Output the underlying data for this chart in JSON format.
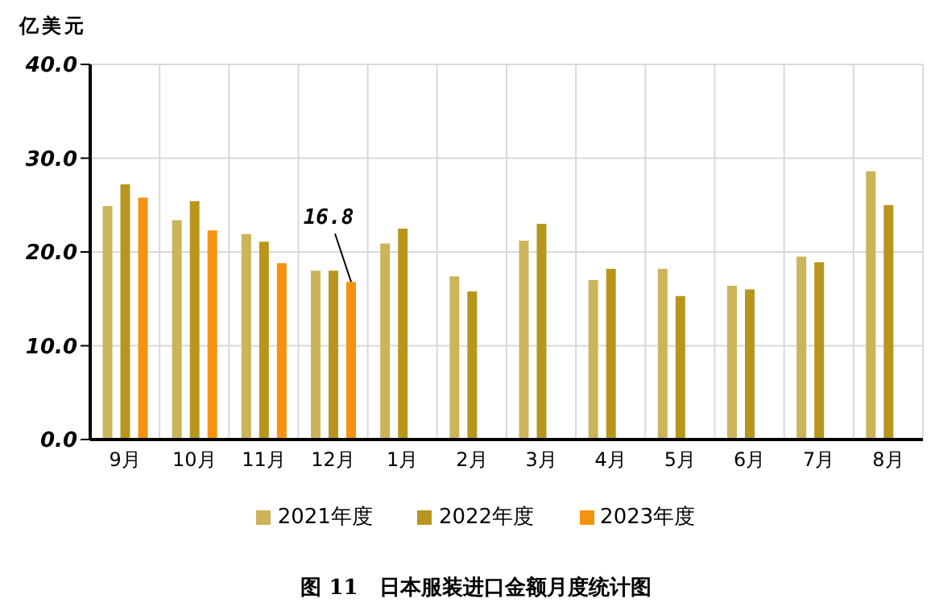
{
  "chart_data": {
    "type": "bar",
    "title": "图 11　日本服装进口金额月度统计图",
    "ylabel": "亿美元",
    "categories": [
      "9月",
      "10月",
      "11月",
      "12月",
      "1月",
      "2月",
      "3月",
      "4月",
      "5月",
      "6月",
      "7月",
      "8月"
    ],
    "series": [
      {
        "name": "2021年度",
        "color": "#cbb45a",
        "values": [
          24.9,
          23.4,
          21.9,
          18.0,
          20.9,
          17.4,
          21.2,
          17.0,
          18.2,
          16.4,
          19.5,
          28.6
        ]
      },
      {
        "name": "2022年度",
        "color": "#b8961e",
        "values": [
          27.2,
          25.4,
          21.1,
          18.0,
          22.5,
          15.8,
          23.0,
          18.2,
          15.3,
          16.0,
          18.9,
          25.0
        ]
      },
      {
        "name": "2023年度",
        "color": "#f5930f",
        "values": [
          25.8,
          22.3,
          18.8,
          16.8,
          null,
          null,
          null,
          null,
          null,
          null,
          null,
          null
        ],
        "value_labels": [
          null,
          null,
          null,
          "16.8",
          null,
          null,
          null,
          null,
          null,
          null,
          null,
          null
        ]
      }
    ],
    "ylim": [
      0,
      40
    ],
    "yticks": [
      {
        "value": 0,
        "label": "0.0"
      },
      {
        "value": 10,
        "label": "10.0"
      },
      {
        "value": 20,
        "label": "20.0"
      },
      {
        "value": 30,
        "label": "30.0"
      },
      {
        "value": 40,
        "label": "40.0"
      }
    ],
    "grid": true,
    "legend": "bottom"
  }
}
